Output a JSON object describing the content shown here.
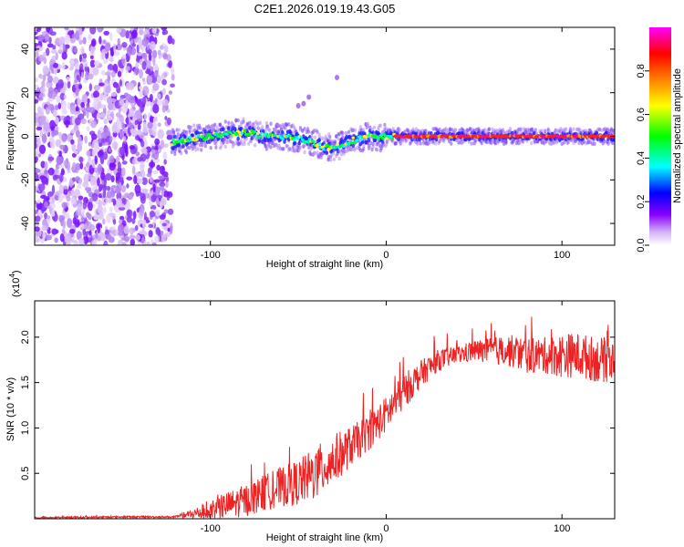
{
  "title": "C2E1.2026.019.19.43.G05",
  "chart_data": [
    {
      "type": "heatmap",
      "xlabel": "Height of straight line (km)",
      "ylabel": "Frequency (Hz)",
      "xlim": [
        -200,
        130
      ],
      "ylim": [
        -50,
        50
      ],
      "xticks": [
        -100,
        0,
        100
      ],
      "xtick_labels": [
        "-100",
        "0",
        "100"
      ],
      "yticks": [
        -40,
        -20,
        0,
        20,
        40
      ],
      "ytick_labels": [
        "-40",
        "-20",
        "0",
        "20",
        "40"
      ],
      "noise_region_x": [
        -200,
        -120
      ],
      "ridge": {
        "x": [
          -122,
          -110,
          -100,
          -90,
          -80,
          -70,
          -60,
          -50,
          -45,
          -40,
          -35,
          -30,
          -25,
          -20,
          -15,
          -10,
          -5,
          0,
          10,
          30,
          60,
          90,
          110,
          130
        ],
        "frequency": [
          -3,
          -1,
          0,
          1,
          2,
          0,
          0,
          -1,
          -2,
          -3,
          -5,
          -5,
          -4,
          -2,
          -1,
          0,
          -1,
          0,
          0,
          0,
          0,
          0,
          0,
          0
        ]
      },
      "colorbar": {
        "label": "Normalized spectral amplitude",
        "range": [
          0,
          1
        ],
        "ticks": [
          0.0,
          0.2,
          0.4,
          0.6,
          0.8
        ],
        "tick_labels": [
          "0.0",
          "0.2",
          "0.4",
          "0.6",
          "0.8"
        ],
        "colors": [
          "#ffffff",
          "#d5b3f5",
          "#8a00ff",
          "#0000ff",
          "#00ffff",
          "#00ff00",
          "#ffff00",
          "#ff8000",
          "#ff0000",
          "#ff00ff"
        ]
      }
    },
    {
      "type": "line",
      "xlabel": "Height of straight line (km)",
      "ylabel": "SNR (10 * v/v)",
      "scale_note_base": "(x10",
      "scale_note_exp": "4",
      "scale_note_close": ")",
      "xlim": [
        -200,
        130
      ],
      "ylim": [
        0,
        2.4
      ],
      "xticks": [
        -100,
        0,
        100
      ],
      "xtick_labels": [
        "-100",
        "0",
        "100"
      ],
      "yticks": [
        0.5,
        1.0,
        1.5,
        2.0
      ],
      "ytick_labels": [
        "0.5",
        "1.0",
        "1.5",
        "2.0"
      ],
      "series": [
        {
          "name": "SNR",
          "color": "#ee2222",
          "x": [
            -200,
            -150,
            -120,
            -110,
            -100,
            -90,
            -80,
            -70,
            -60,
            -50,
            -40,
            -30,
            -20,
            -10,
            0,
            10,
            20,
            30,
            40,
            50,
            60,
            70,
            80,
            90,
            100,
            110,
            120,
            130
          ],
          "values": [
            0.01,
            0.02,
            0.02,
            0.05,
            0.1,
            0.15,
            0.2,
            0.28,
            0.35,
            0.4,
            0.5,
            0.65,
            0.8,
            0.95,
            1.15,
            1.4,
            1.6,
            1.75,
            1.8,
            1.85,
            1.85,
            1.85,
            1.8,
            1.8,
            1.8,
            1.8,
            1.75,
            1.75
          ],
          "noise_amplitude": [
            0.01,
            0.01,
            0.01,
            0.06,
            0.12,
            0.15,
            0.18,
            0.2,
            0.22,
            0.25,
            0.3,
            0.28,
            0.22,
            0.2,
            0.2,
            0.2,
            0.15,
            0.12,
            0.1,
            0.12,
            0.15,
            0.18,
            0.2,
            0.2,
            0.25,
            0.25,
            0.25,
            0.25
          ]
        }
      ]
    }
  ]
}
